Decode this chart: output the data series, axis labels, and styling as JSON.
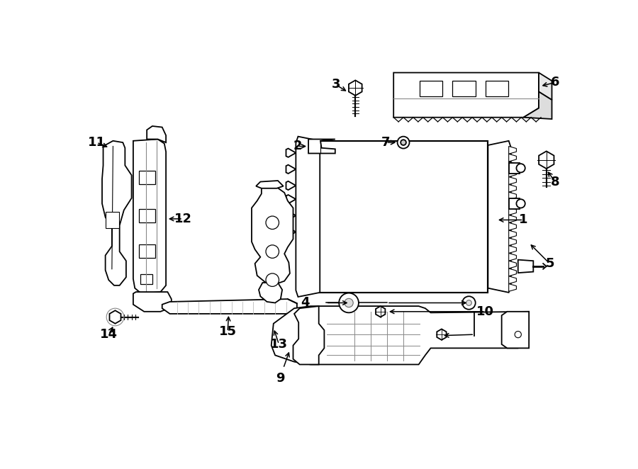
{
  "bg": "#ffffff",
  "lc": "#000000",
  "lw": 1.3,
  "figsize": [
    9.0,
    6.62
  ],
  "dpi": 100
}
